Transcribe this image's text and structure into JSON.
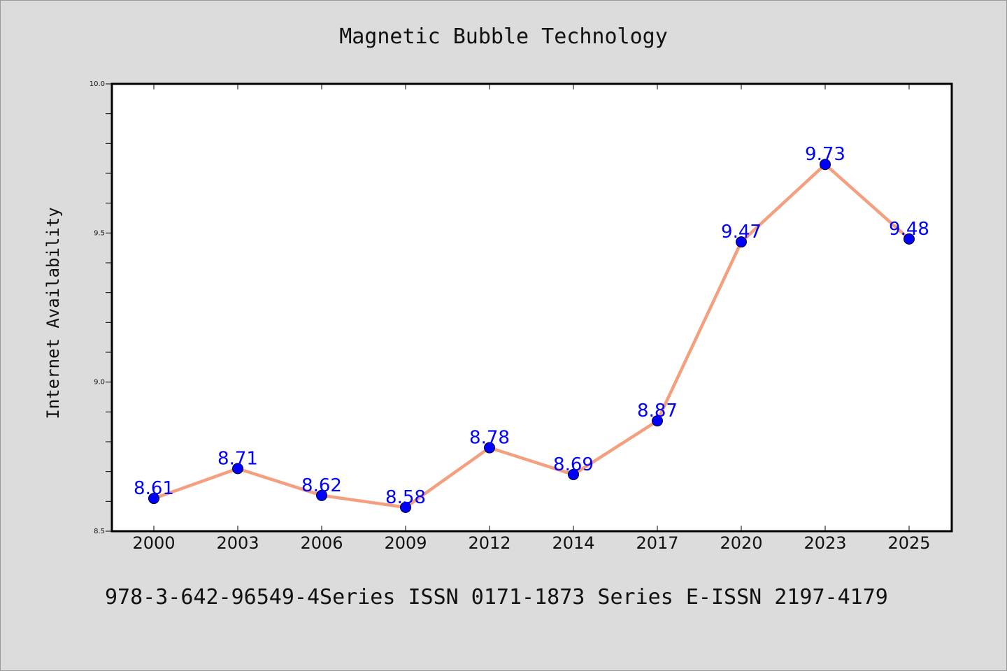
{
  "chart_data": {
    "type": "line",
    "title": "Magnetic Bubble Technology",
    "xlabel": "",
    "ylabel": "Internet Availability",
    "categories": [
      "2000",
      "2003",
      "2006",
      "2009",
      "2012",
      "2014",
      "2017",
      "2020",
      "2023",
      "2025"
    ],
    "series": [
      {
        "values": [
          8.61,
          8.71,
          8.62,
          8.58,
          8.78,
          8.69,
          8.87,
          9.47,
          9.73,
          9.48
        ]
      }
    ],
    "data_labels": [
      "8.61",
      "8.71",
      "8.62",
      "8.58",
      "8.78",
      "8.69",
      "8.87",
      "9.47",
      "9.73",
      "9.48"
    ],
    "ylim": [
      8.5,
      10.0
    ],
    "yticks": [
      "8.5",
      "9.0",
      "9.5",
      "10.0"
    ],
    "grid": false,
    "line_color": "#f4a07e",
    "marker_color": "#0000ff",
    "label_color": "#0000ff"
  },
  "footer": "978-3-642-96549-4Series ISSN 0171-1873 Series E-ISSN 2197-4179"
}
